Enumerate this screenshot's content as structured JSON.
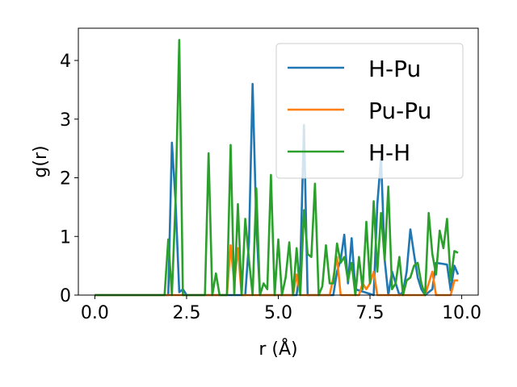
{
  "chart_data": {
    "type": "line",
    "xlabel": "r (Å)",
    "ylabel": "g(r)",
    "xlim": [
      -0.45,
      10.45
    ],
    "ylim": [
      0,
      4.55
    ],
    "xticks": [
      0.0,
      2.5,
      5.0,
      7.5,
      10.0
    ],
    "xtick_labels": [
      "0.0",
      "2.5",
      "5.0",
      "7.5",
      "10.0"
    ],
    "yticks": [
      0,
      1,
      2,
      3,
      4
    ],
    "ytick_labels": [
      "0",
      "1",
      "2",
      "3",
      "4"
    ],
    "grid": false,
    "legend_position": "top-right",
    "series": [
      {
        "name": "H-Pu",
        "color": "#1f77b4",
        "x": [
          0.0,
          2.0,
          2.1,
          2.2,
          2.3,
          2.4,
          2.5,
          4.1,
          4.2,
          4.3,
          4.4,
          4.5,
          5.5,
          5.6,
          5.7,
          5.8,
          6.5,
          6.6,
          6.7,
          6.8,
          6.9,
          7.0,
          7.1,
          7.6,
          7.7,
          7.8,
          7.9,
          8.0,
          8.1,
          8.3,
          8.4,
          8.5,
          8.6,
          8.7,
          8.8,
          8.9,
          9.0,
          9.1,
          9.2,
          9.3,
          9.4,
          9.5,
          9.6,
          9.7,
          9.8,
          9.9
        ],
        "y": [
          0,
          0,
          2.6,
          1.6,
          0.05,
          0.1,
          0,
          0,
          0.9,
          3.6,
          1.2,
          0,
          0,
          0.5,
          2.9,
          0,
          0,
          0.4,
          0.6,
          1.03,
          0.2,
          0.97,
          0.1,
          0,
          1.55,
          2.35,
          0.6,
          0,
          0.4,
          0,
          0.05,
          0.4,
          1.12,
          0.7,
          0.3,
          0.1,
          0,
          0.05,
          0.1,
          0.55,
          0.54,
          0.53,
          0.52,
          0.08,
          0.5,
          0.35
        ]
      },
      {
        "name": "Pu-Pu",
        "color": "#ff7f0e",
        "x": [
          0.0,
          3.6,
          3.7,
          3.8,
          3.9,
          4.0,
          5.4,
          5.5,
          5.6,
          6.4,
          6.5,
          6.6,
          6.7,
          7.2,
          7.3,
          7.4,
          7.5,
          7.6,
          7.7,
          9.0,
          9.1,
          9.2,
          9.3,
          9.7,
          9.8,
          9.9
        ],
        "y": [
          0,
          0,
          0.85,
          0.2,
          0.8,
          0,
          0,
          0.35,
          0,
          0,
          0.3,
          0.65,
          0,
          0,
          0.2,
          0.1,
          0.2,
          0.4,
          0,
          0,
          0.2,
          0.4,
          0,
          0,
          0.25,
          0.25
        ]
      },
      {
        "name": "H-H",
        "color": "#2ca02c",
        "x": [
          0.0,
          1.9,
          2.0,
          2.1,
          2.2,
          2.3,
          2.4,
          3.0,
          3.1,
          3.2,
          3.3,
          3.4,
          3.6,
          3.7,
          3.8,
          3.9,
          4.0,
          4.1,
          4.2,
          4.3,
          4.4,
          4.5,
          4.6,
          4.7,
          4.8,
          4.9,
          5.0,
          5.1,
          5.2,
          5.3,
          5.4,
          5.5,
          5.6,
          5.7,
          5.8,
          5.9,
          6.0,
          6.1,
          6.2,
          6.3,
          6.4,
          6.5,
          6.6,
          6.7,
          6.8,
          6.9,
          7.0,
          7.1,
          7.2,
          7.3,
          7.4,
          7.5,
          7.6,
          7.7,
          7.8,
          7.9,
          8.0,
          8.1,
          8.2,
          8.3,
          8.4,
          8.5,
          8.6,
          8.7,
          8.8,
          8.9,
          9.0,
          9.1,
          9.2,
          9.3,
          9.4,
          9.5,
          9.6,
          9.7,
          9.8,
          9.9
        ],
        "y": [
          0,
          0,
          0.95,
          0,
          1.6,
          4.35,
          0,
          0,
          2.42,
          0,
          0.37,
          0,
          0,
          2.56,
          0,
          1.55,
          0,
          1.3,
          0.6,
          0,
          1.82,
          0,
          0.2,
          0.1,
          2.05,
          0,
          0.95,
          0,
          0.3,
          0.9,
          0,
          0.8,
          0,
          1.45,
          0.7,
          0.65,
          1.9,
          0,
          0.15,
          0.85,
          0.2,
          0.2,
          0.88,
          0.55,
          0.65,
          0.25,
          0.55,
          0,
          0.65,
          0.1,
          1.25,
          0.2,
          1.6,
          0.4,
          1.4,
          0.6,
          1.85,
          0.1,
          0.2,
          0.65,
          0,
          0.25,
          0.3,
          0.5,
          0.55,
          0.2,
          0,
          1.4,
          0.7,
          0.35,
          1.1,
          0.8,
          1.3,
          0.25,
          0.75,
          0.72
        ]
      }
    ]
  }
}
